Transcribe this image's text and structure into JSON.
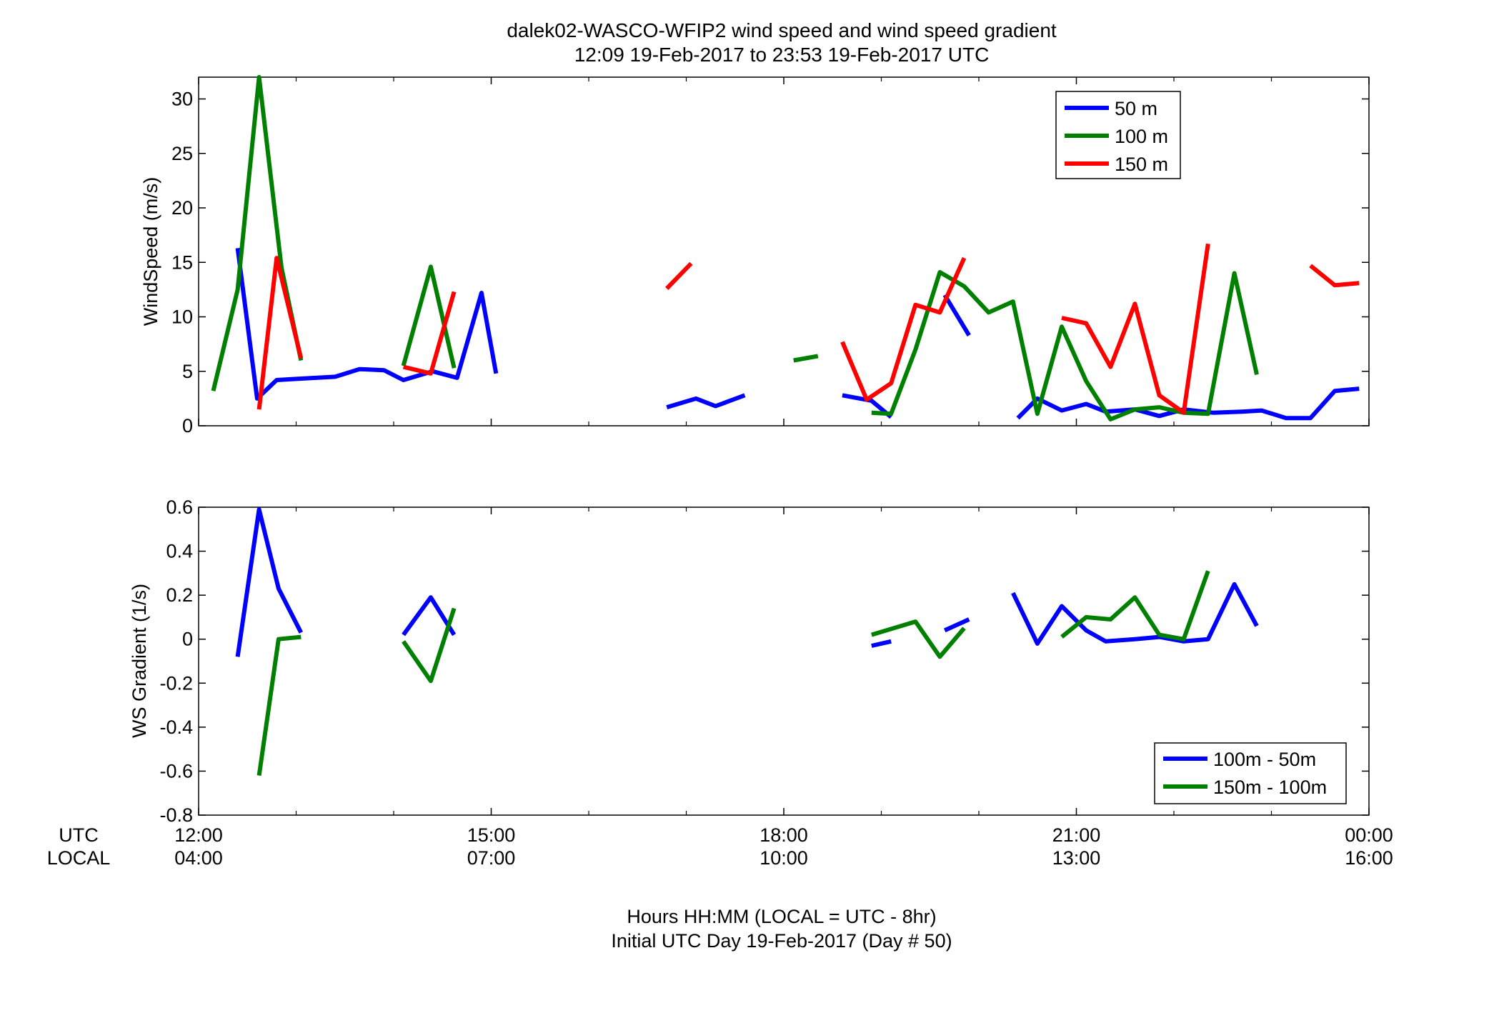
{
  "figure": {
    "title_line1": "dalek02-WASCO-WFIP2  wind speed and wind speed gradient",
    "title_line2": "12:09 19-Feb-2017 to 23:53 19-Feb-2017  UTC",
    "xlabel_line1": "Hours HH:MM  (LOCAL = UTC - 8hr)",
    "xlabel_line2": "Initial UTC Day 19-Feb-2017 (Day # 50)",
    "row_label_utc": "UTC",
    "row_label_local": "LOCAL"
  },
  "x_axis": {
    "unit": "hours UTC",
    "xlim": [
      12,
      24
    ],
    "ticks": [
      12,
      15,
      18,
      21,
      24
    ],
    "utc_labels": [
      "12:00",
      "15:00",
      "18:00",
      "21:00",
      "00:00"
    ],
    "local_labels": [
      "04:00",
      "07:00",
      "10:00",
      "13:00",
      "16:00"
    ]
  },
  "colors": {
    "blue": "#0000ff",
    "green": "#008000",
    "red": "#ff0000"
  },
  "chart_data": [
    {
      "type": "line",
      "ylabel": "WindSpeed (m/s)",
      "ylim": [
        0,
        32
      ],
      "yticks": [
        0,
        5,
        10,
        15,
        20,
        25,
        30
      ],
      "ytick_labels": [
        "0",
        "5",
        "10",
        "15",
        "20",
        "25",
        "30"
      ],
      "legend_position": "top-right",
      "series": [
        {
          "name": "50 m",
          "color": "#0000ff",
          "segments": [
            [
              [
                12.4,
                16.3
              ],
              [
                12.6,
                2.5
              ],
              [
                12.8,
                4.2
              ],
              [
                13.0,
                4.3
              ],
              [
                13.4,
                4.5
              ],
              [
                13.65,
                5.2
              ],
              [
                13.9,
                5.1
              ],
              [
                14.1,
                4.2
              ],
              [
                14.4,
                5.0
              ],
              [
                14.65,
                4.4
              ],
              [
                14.9,
                12.2
              ],
              [
                15.05,
                4.8
              ]
            ],
            [
              [
                16.8,
                1.7
              ],
              [
                17.1,
                2.5
              ],
              [
                17.3,
                1.8
              ],
              [
                17.6,
                2.8
              ]
            ],
            [
              [
                18.6,
                2.8
              ],
              [
                18.9,
                2.3
              ],
              [
                19.1,
                0.8
              ]
            ],
            [
              [
                19.65,
                12.0
              ],
              [
                19.9,
                8.3
              ]
            ],
            [
              [
                20.4,
                0.7
              ],
              [
                20.6,
                2.5
              ],
              [
                20.85,
                1.4
              ],
              [
                21.1,
                2.0
              ],
              [
                21.3,
                1.3
              ],
              [
                21.6,
                1.5
              ],
              [
                21.85,
                0.9
              ],
              [
                22.1,
                1.5
              ],
              [
                22.4,
                1.2
              ],
              [
                22.7,
                1.3
              ],
              [
                22.9,
                1.4
              ],
              [
                23.15,
                0.7
              ],
              [
                23.4,
                0.7
              ],
              [
                23.65,
                3.2
              ],
              [
                23.9,
                3.4
              ]
            ]
          ]
        },
        {
          "name": "100 m",
          "color": "#008000",
          "segments": [
            [
              [
                12.15,
                3.2
              ],
              [
                12.4,
                12.5
              ],
              [
                12.62,
                32.0
              ],
              [
                12.85,
                14.5
              ],
              [
                13.05,
                6.0
              ]
            ],
            [
              [
                14.1,
                5.5
              ],
              [
                14.38,
                14.6
              ],
              [
                14.62,
                5.3
              ]
            ],
            [
              [
                18.1,
                6.0
              ],
              [
                18.35,
                6.4
              ]
            ],
            [
              [
                18.9,
                1.2
              ],
              [
                19.1,
                1.1
              ],
              [
                19.35,
                7.0
              ],
              [
                19.6,
                14.1
              ],
              [
                19.85,
                12.8
              ],
              [
                20.1,
                10.4
              ],
              [
                20.35,
                11.4
              ],
              [
                20.6,
                1.1
              ],
              [
                20.85,
                9.1
              ],
              [
                21.1,
                4.1
              ],
              [
                21.35,
                0.6
              ],
              [
                21.6,
                1.5
              ],
              [
                21.85,
                1.7
              ],
              [
                22.1,
                1.2
              ],
              [
                22.35,
                1.1
              ],
              [
                22.62,
                14.0
              ],
              [
                22.85,
                4.7
              ]
            ]
          ]
        },
        {
          "name": "150 m",
          "color": "#ff0000",
          "segments": [
            [
              [
                12.62,
                1.5
              ],
              [
                12.8,
                15.4
              ],
              [
                13.05,
                6.2
              ]
            ],
            [
              [
                14.1,
                5.4
              ],
              [
                14.38,
                4.8
              ],
              [
                14.62,
                12.3
              ]
            ],
            [
              [
                16.8,
                12.6
              ],
              [
                17.05,
                14.9
              ]
            ],
            [
              [
                18.6,
                7.7
              ],
              [
                18.85,
                2.4
              ],
              [
                19.1,
                3.9
              ],
              [
                19.35,
                11.1
              ],
              [
                19.6,
                10.4
              ],
              [
                19.85,
                15.4
              ]
            ],
            [
              [
                20.85,
                9.9
              ],
              [
                21.1,
                9.4
              ],
              [
                21.35,
                5.4
              ],
              [
                21.6,
                11.2
              ],
              [
                21.85,
                2.8
              ],
              [
                22.1,
                1.2
              ],
              [
                22.35,
                16.7
              ]
            ],
            [
              [
                23.4,
                14.7
              ],
              [
                23.65,
                12.9
              ],
              [
                23.9,
                13.1
              ]
            ]
          ]
        }
      ]
    },
    {
      "type": "line",
      "ylabel": "WS Gradient (1/s)",
      "ylim": [
        -0.8,
        0.6
      ],
      "yticks": [
        -0.8,
        -0.6,
        -0.4,
        -0.2,
        0,
        0.2,
        0.4,
        0.6
      ],
      "ytick_labels": [
        "-0.8",
        "-0.6",
        "-0.4",
        "-0.2",
        "0",
        "0.2",
        "0.4",
        "0.6"
      ],
      "legend_position": "bottom-right",
      "series": [
        {
          "name": "100m - 50m",
          "color": "#0000ff",
          "segments": [
            [
              [
                12.4,
                -0.08
              ],
              [
                12.62,
                0.59
              ],
              [
                12.82,
                0.23
              ],
              [
                13.05,
                0.03
              ]
            ],
            [
              [
                14.1,
                0.02
              ],
              [
                14.38,
                0.19
              ],
              [
                14.62,
                0.02
              ]
            ],
            [
              [
                18.9,
                -0.03
              ],
              [
                19.1,
                -0.01
              ]
            ],
            [
              [
                19.65,
                0.04
              ],
              [
                19.9,
                0.09
              ]
            ],
            [
              [
                20.35,
                0.21
              ],
              [
                20.6,
                -0.02
              ],
              [
                20.85,
                0.15
              ],
              [
                21.1,
                0.04
              ],
              [
                21.3,
                -0.01
              ],
              [
                21.6,
                0.0
              ],
              [
                21.85,
                0.01
              ],
              [
                22.1,
                -0.01
              ],
              [
                22.35,
                0.0
              ],
              [
                22.62,
                0.25
              ],
              [
                22.85,
                0.06
              ]
            ]
          ]
        },
        {
          "name": "150m - 100m",
          "color": "#008000",
          "segments": [
            [
              [
                12.62,
                -0.62
              ],
              [
                12.82,
                0.0
              ],
              [
                13.05,
                0.01
              ]
            ],
            [
              [
                14.1,
                -0.01
              ],
              [
                14.38,
                -0.19
              ],
              [
                14.62,
                0.14
              ]
            ],
            [
              [
                18.9,
                0.02
              ],
              [
                19.35,
                0.08
              ],
              [
                19.6,
                -0.08
              ],
              [
                19.85,
                0.05
              ]
            ],
            [
              [
                20.85,
                0.01
              ],
              [
                21.1,
                0.1
              ],
              [
                21.35,
                0.09
              ],
              [
                21.6,
                0.19
              ],
              [
                21.85,
                0.02
              ],
              [
                22.1,
                0.0
              ],
              [
                22.35,
                0.31
              ]
            ]
          ]
        }
      ]
    }
  ]
}
